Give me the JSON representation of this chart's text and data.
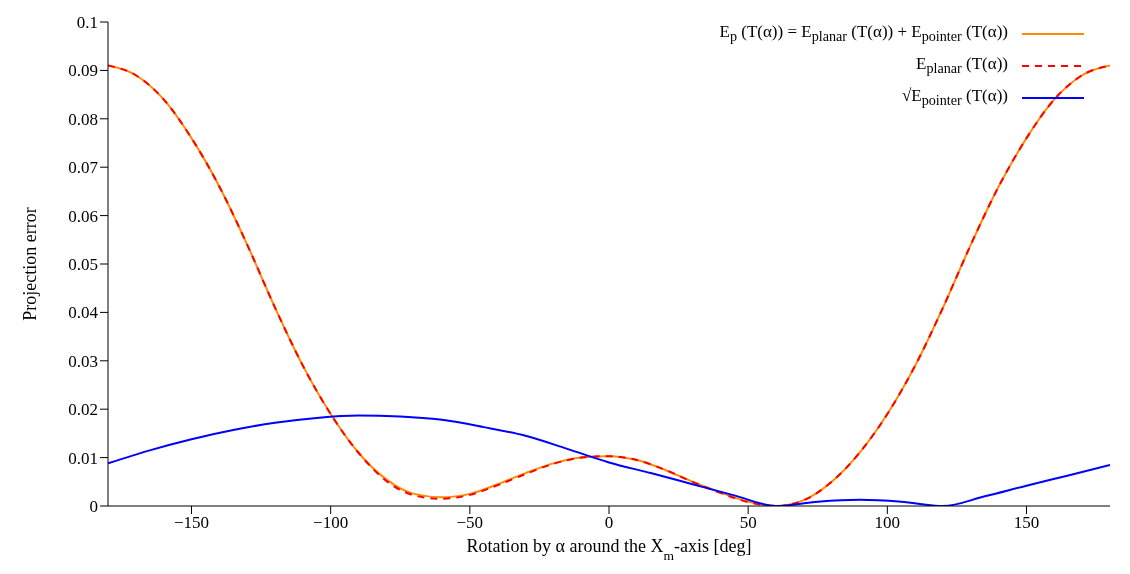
{
  "chart_data": {
    "type": "line",
    "xlabel": "Rotation by α around the X$_{m}$-axis [deg]",
    "ylabel": "Projection error",
    "x": [
      -180,
      -170,
      -160,
      -150,
      -140,
      -130,
      -120,
      -110,
      -100,
      -90,
      -80,
      -70,
      -60,
      -50,
      -40,
      -30,
      -20,
      -10,
      0,
      10,
      20,
      30,
      40,
      50,
      60,
      70,
      80,
      90,
      100,
      110,
      120,
      130,
      140,
      150,
      160,
      170,
      180
    ],
    "series": [
      {
        "name": "E$_{p}$ (T(α)) = E$_{planar}$ (T(α)) + E$_{pointer}$ (T(α))",
        "color": "#ff8c00",
        "line_style": "solid",
        "values": [
          0.091,
          0.089,
          0.084,
          0.076,
          0.066,
          0.054,
          0.041,
          0.029,
          0.019,
          0.011,
          0.0055,
          0.0025,
          0.0018,
          0.0025,
          0.0045,
          0.0068,
          0.0088,
          0.01,
          0.0103,
          0.0095,
          0.0075,
          0.005,
          0.0028,
          0.0009,
          0,
          0.0012,
          0.005,
          0.011,
          0.019,
          0.029,
          0.041,
          0.054,
          0.066,
          0.076,
          0.084,
          0.089,
          0.091
        ]
      },
      {
        "name": "E$_{planar}$ (T(α))",
        "color": "#ff0000",
        "line_style": "dashed",
        "values": [
          0.091,
          0.089,
          0.084,
          0.076,
          0.066,
          0.054,
          0.041,
          0.029,
          0.019,
          0.011,
          0.0052,
          0.0022,
          0.0015,
          0.0023,
          0.0043,
          0.0066,
          0.0087,
          0.01,
          0.0103,
          0.0095,
          0.0075,
          0.005,
          0.0027,
          0.0008,
          0,
          0.0012,
          0.005,
          0.011,
          0.019,
          0.029,
          0.041,
          0.054,
          0.066,
          0.076,
          0.084,
          0.089,
          0.091
        ]
      },
      {
        "name": "√E$_{pointer}$ (T(α))",
        "color": "#0000ff",
        "line_style": "solid",
        "x": [
          -180,
          -165,
          -150,
          -135,
          -120,
          -105,
          -90,
          -75,
          -60,
          -45,
          -30,
          -15,
          0,
          15,
          30,
          45,
          60,
          75,
          90,
          105,
          120,
          135,
          150,
          165,
          180
        ],
        "values": [
          0.0088,
          0.0115,
          0.0138,
          0.0157,
          0.0172,
          0.0182,
          0.0187,
          0.0185,
          0.0178,
          0.0163,
          0.0145,
          0.0118,
          0.009,
          0.0068,
          0.0045,
          0.0022,
          0,
          0.0009,
          0.0013,
          0.0009,
          0,
          0.002,
          0.0042,
          0.0063,
          0.0085
        ]
      }
    ],
    "xlim": [
      -180,
      180
    ],
    "xticks": [
      {
        "value": -150,
        "label": "−150"
      },
      {
        "value": -100,
        "label": "−100"
      },
      {
        "value": -50,
        "label": "−50"
      },
      0,
      50,
      100,
      150
    ],
    "ylim": [
      0,
      0.1
    ],
    "yticks": [
      0,
      0.01,
      0.02,
      0.03,
      0.04,
      0.05,
      0.06,
      0.07,
      0.08,
      0.09,
      0.1
    ],
    "legend": "top right",
    "marker": "none"
  }
}
